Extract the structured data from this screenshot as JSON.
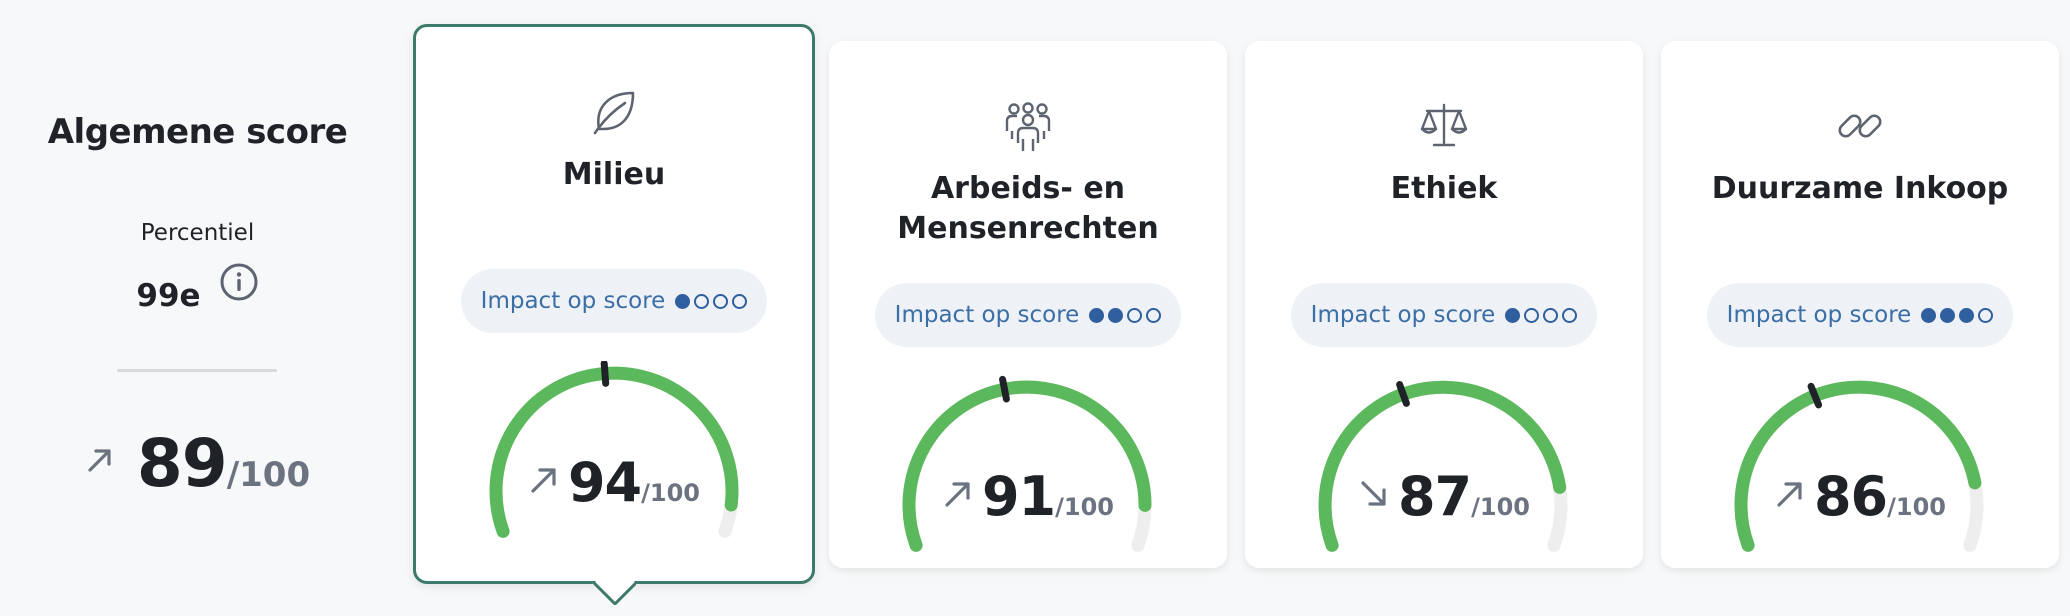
{
  "overall": {
    "title": "Algemene score",
    "percentile_label": "Percentiel",
    "percentile_value": "99e",
    "trend": "up",
    "score": "89",
    "denominator": "/100"
  },
  "colors": {
    "gauge_fill": "#5cb85c",
    "gauge_track": "#eeeeee",
    "selected_border": "#3d7a6c",
    "impact_text": "#3b6ea4"
  },
  "cards": [
    {
      "title": "Milieu",
      "icon": "leaf-icon",
      "impact_label": "Impact op score",
      "impact_level": 1,
      "impact_max": 4,
      "trend": "up",
      "score": "94",
      "score_value": 94,
      "denominator": "/100",
      "selected": true
    },
    {
      "title": "Arbeids- en Mensenrechten",
      "icon": "people-group-icon",
      "impact_label": "Impact op score",
      "impact_level": 2,
      "impact_max": 4,
      "trend": "up",
      "score": "91",
      "score_value": 91,
      "denominator": "/100",
      "selected": false
    },
    {
      "title": "Ethiek",
      "icon": "scales-icon",
      "impact_label": "Impact op score",
      "impact_level": 1,
      "impact_max": 4,
      "trend": "down",
      "score": "87",
      "score_value": 87,
      "denominator": "/100",
      "selected": false
    },
    {
      "title": "Duurzame Inkoop",
      "icon": "chain-link-icon",
      "impact_label": "Impact op score",
      "impact_level": 3,
      "impact_max": 4,
      "trend": "up",
      "score": "86",
      "score_value": 86,
      "denominator": "/100",
      "selected": false
    }
  ]
}
